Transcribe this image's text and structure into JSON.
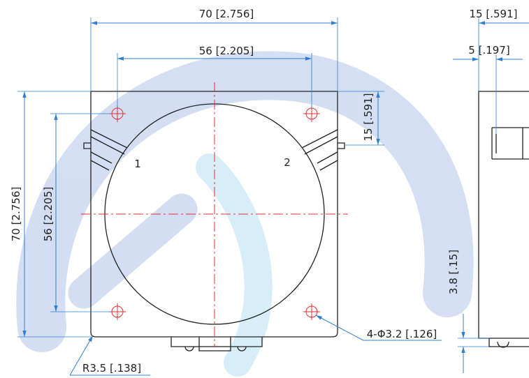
{
  "dimensions": {
    "overall_width": "70 [2.756]",
    "hole_spacing_x": "56 [2.205]",
    "overall_height": "70 [2.756]",
    "hole_spacing_y": "56 [2.205]",
    "port_offset": "15 [.591]",
    "side_depth": "15 [.591]",
    "connector_offset": "5 [.197]",
    "base_height": "3.8 [.15]",
    "mounting_holes": "4-Φ3.2 [.126]",
    "corner_radius": "R3.5 [.138]"
  },
  "ports": [
    "1",
    "2"
  ]
}
